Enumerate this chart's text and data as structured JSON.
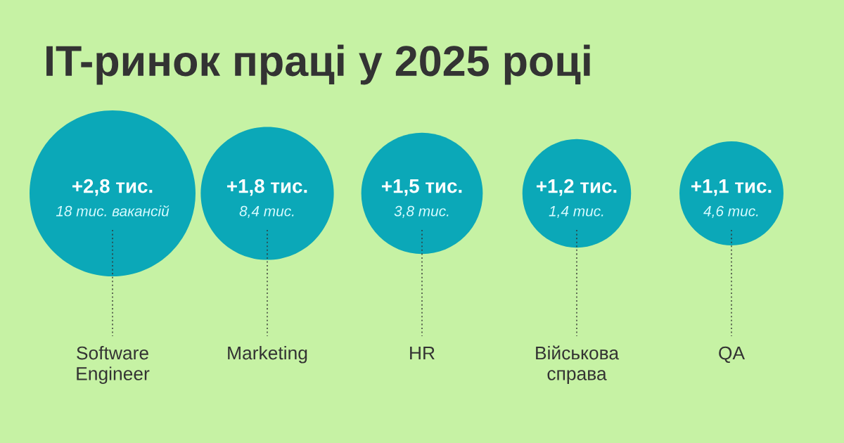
{
  "chart_data": {
    "type": "other",
    "title": "IT-ринок праці у 2025 році",
    "categories": [
      "Software Engineer",
      "Marketing",
      "HR",
      "Військова справа",
      "QA"
    ],
    "values": [
      2.8,
      1.8,
      1.5,
      1.2,
      1.1
    ],
    "value_labels": [
      "+2,8 тис.",
      "+1,8 тис.",
      "+1,5 тис.",
      "+1,2 тис.",
      "+1,1 тис."
    ],
    "color": "#0ba8b8",
    "annotations": [
      {
        "text": "18 тис. вакансій",
        "x": "Software Engineer"
      },
      {
        "text": "8,4 тис.",
        "x": "Marketing"
      },
      {
        "text": "3,8 тис.",
        "x": "HR"
      },
      {
        "text": "1,4 тис.",
        "x": "Військова справа"
      },
      {
        "text": "4,6 тис.",
        "x": "QA"
      }
    ]
  }
}
